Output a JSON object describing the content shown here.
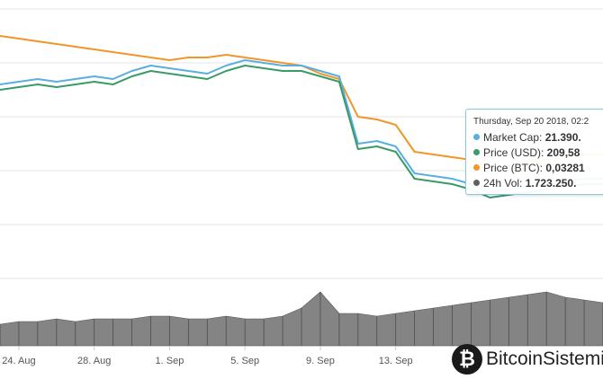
{
  "chart_data": {
    "type": "line",
    "x": [
      0,
      1,
      2,
      3,
      4,
      5,
      6,
      7,
      8,
      9,
      10,
      11,
      12,
      13,
      14,
      15,
      16,
      17,
      18,
      19,
      20,
      21,
      22,
      23,
      24,
      25,
      26,
      27,
      28,
      29,
      30,
      31,
      32
    ],
    "x_tick_labels": [
      "24. Aug",
      "28. Aug",
      "1. Sep",
      "5. Sep",
      "9. Sep",
      "13. Sep"
    ],
    "x_tick_positions": [
      1,
      5,
      9,
      13,
      17,
      21
    ],
    "series": [
      {
        "name": "Market Cap",
        "color": "#5aaee0",
        "values": [
          72,
          73,
          74,
          73,
          74,
          75,
          74,
          77,
          79,
          78,
          77,
          76,
          79,
          81,
          80,
          79,
          79,
          77,
          75,
          50,
          51,
          49,
          39,
          38,
          37,
          35,
          32,
          33,
          34,
          35,
          36,
          37,
          37
        ]
      },
      {
        "name": "Price (USD)",
        "color": "#3a9a68",
        "values": [
          70,
          71,
          72,
          71,
          72,
          73,
          72,
          75,
          77,
          76,
          75,
          74,
          77,
          79,
          78,
          77,
          77,
          75,
          73,
          48,
          49,
          47,
          37,
          36,
          35,
          33,
          30,
          31,
          32,
          33,
          34,
          35,
          35
        ]
      },
      {
        "name": "Price (BTC)",
        "color": "#f0962b",
        "values": [
          90,
          89,
          88,
          87,
          86,
          85,
          84,
          83,
          82,
          81,
          82,
          82,
          83,
          82,
          81,
          80,
          79,
          76,
          74,
          60,
          59,
          57,
          47,
          46,
          45,
          44,
          41,
          42,
          43,
          44,
          45,
          46,
          46
        ]
      },
      {
        "name": "24h Vol",
        "color": "#606060",
        "values": [
          8,
          9,
          9,
          10,
          9,
          10,
          10,
          10,
          11,
          11,
          10,
          10,
          11,
          10,
          10,
          11,
          14,
          20,
          12,
          12,
          11,
          12,
          13,
          14,
          15,
          16,
          17,
          18,
          19,
          20,
          18,
          17,
          16
        ]
      }
    ],
    "ylim": [
      0,
      100
    ]
  },
  "tooltip": {
    "date": "Thursday, Sep 20 2018, 02:2",
    "rows": [
      {
        "label": "Market Cap: ",
        "value": "21.390.",
        "color": "#5aaee0"
      },
      {
        "label": "Price (USD): ",
        "value": "209,58",
        "color": "#3a9a68"
      },
      {
        "label": "Price (BTC): ",
        "value": "0,03281",
        "color": "#f0962b"
      },
      {
        "label": "24h Vol: ",
        "value": "1.723.250.",
        "color": "#606060"
      }
    ]
  },
  "watermark": {
    "logo_glyph": "₿",
    "text": "BitcoinSistemi"
  }
}
